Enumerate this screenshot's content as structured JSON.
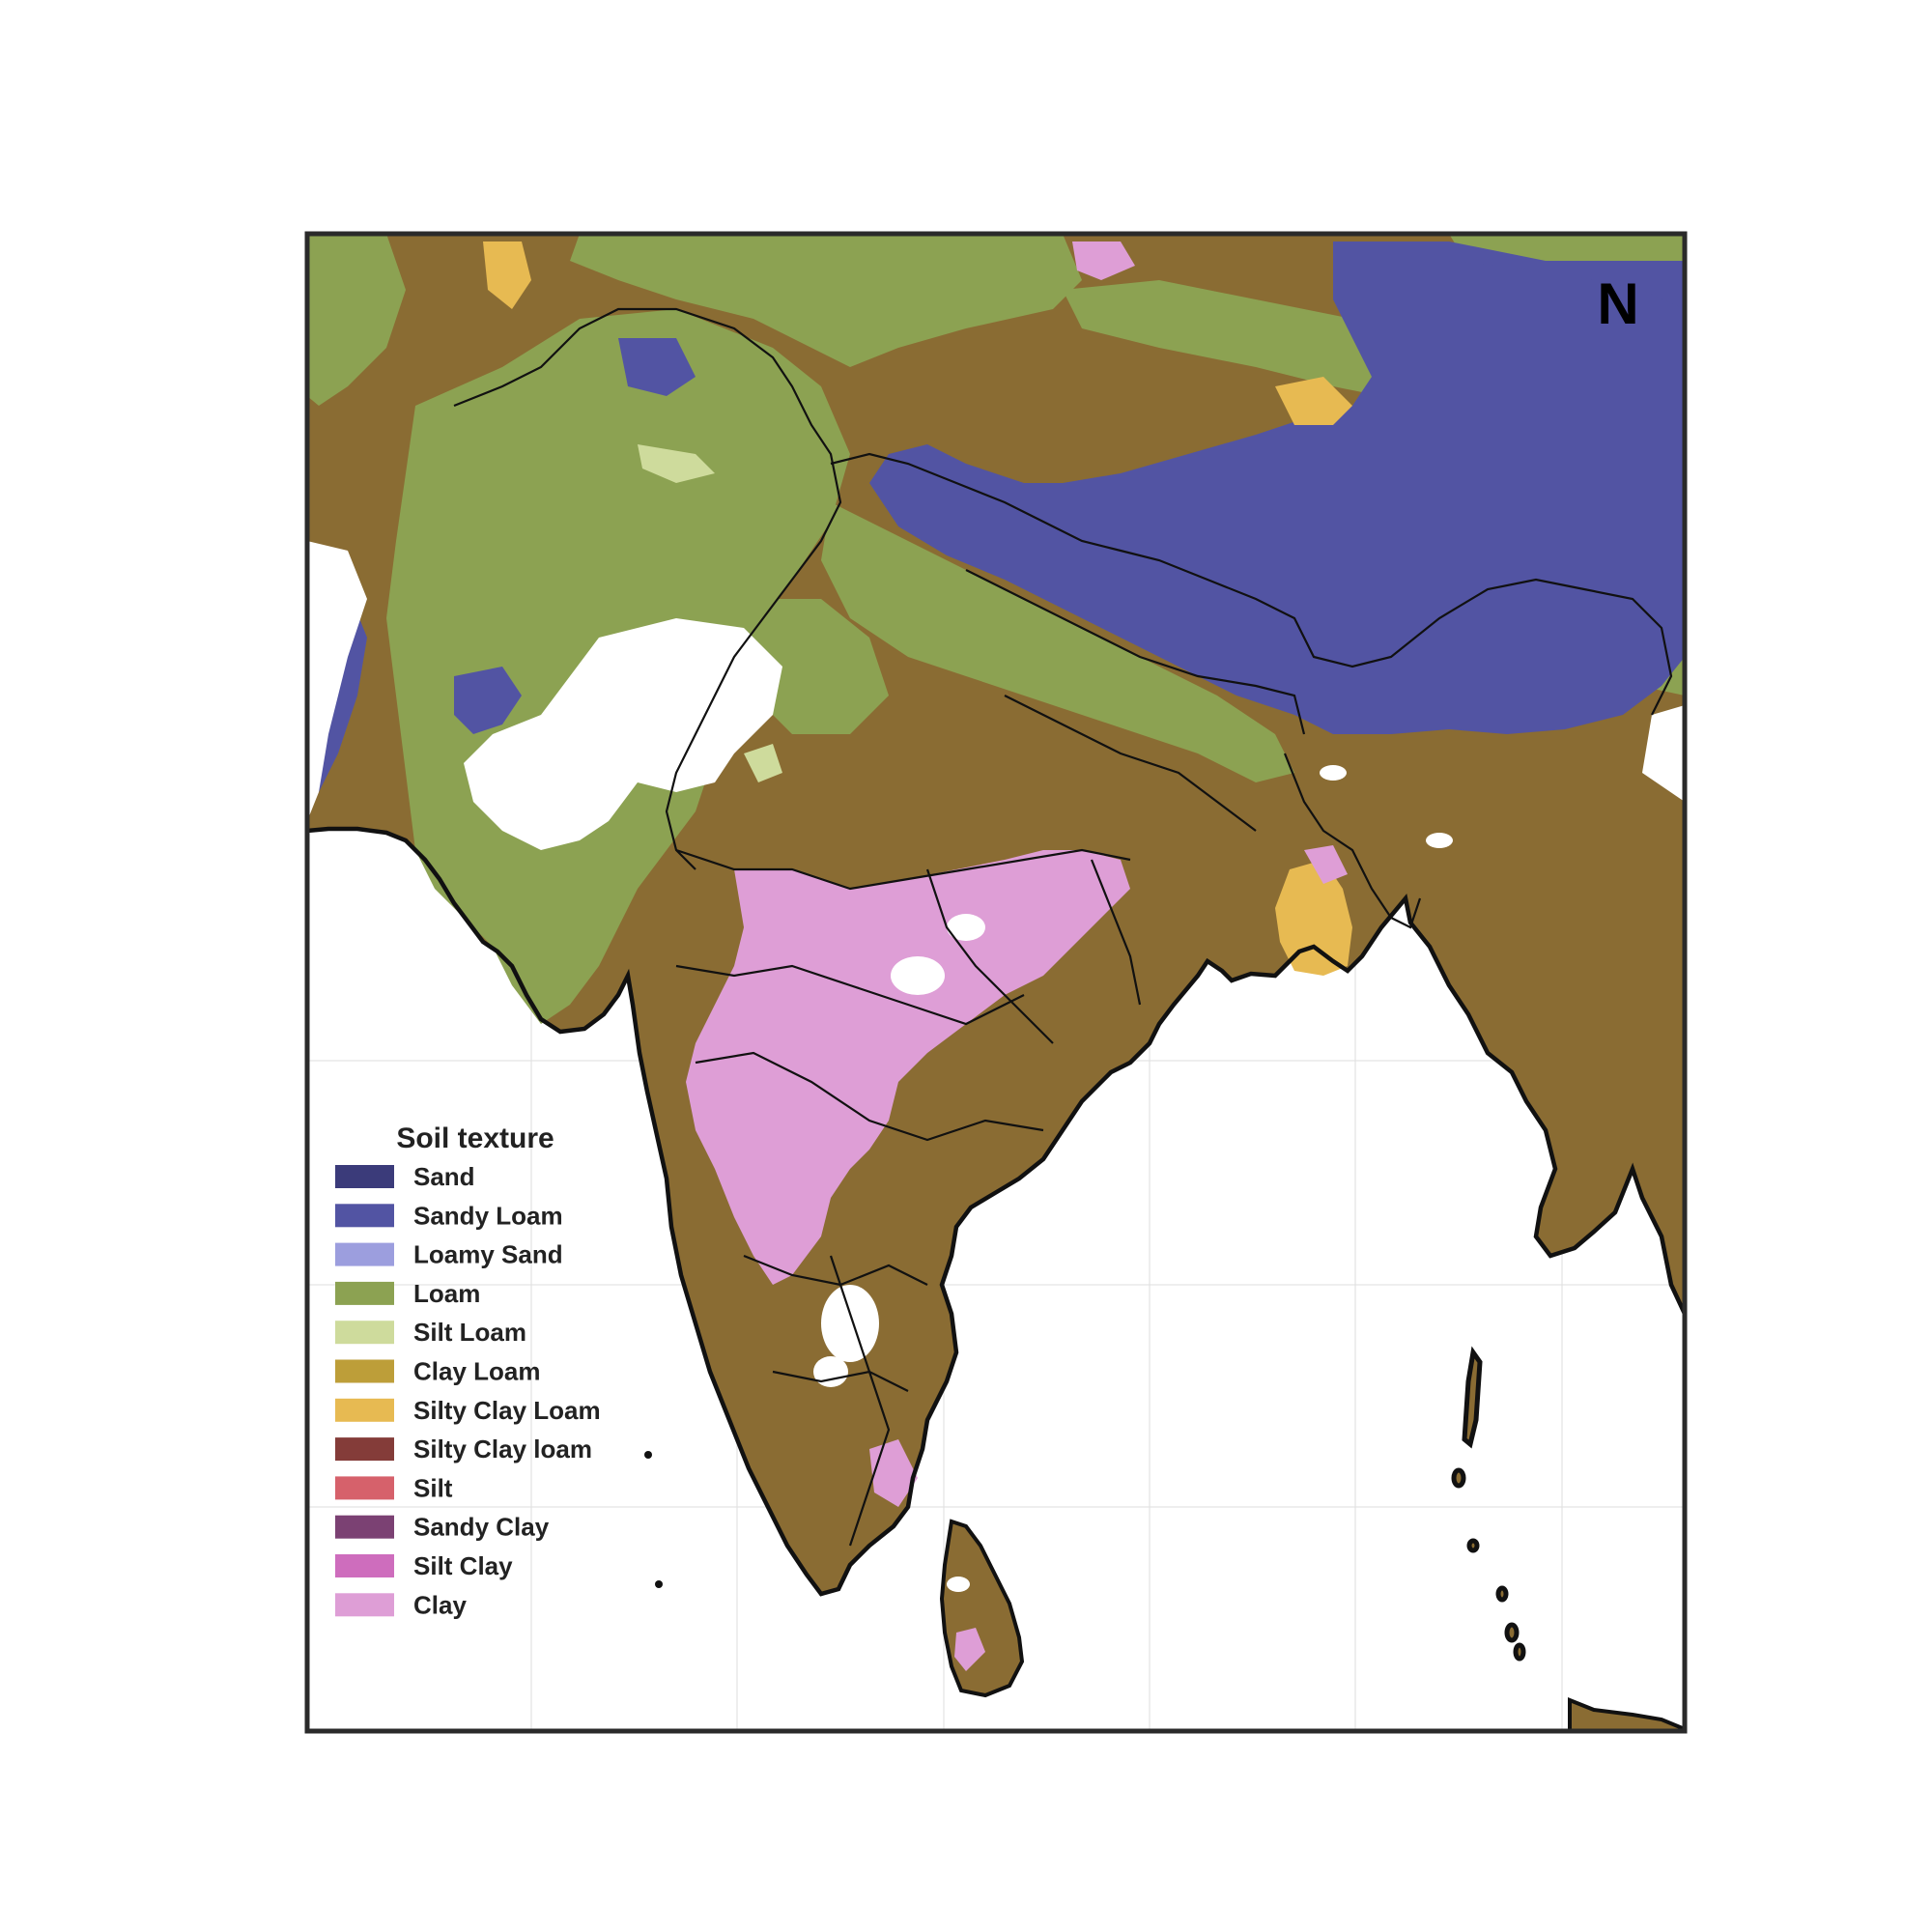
{
  "map": {
    "north_label": "N",
    "colors": {
      "ocean": "#ffffff",
      "gridline": "#e3e3e3",
      "border": "#111111",
      "frame": "#2a2a2a",
      "river": "#d9d9d9",
      "nodata": "#ffffff"
    }
  },
  "legend": {
    "title": "Soil texture",
    "items": [
      {
        "label": "Sand",
        "color": "#3b3b7a"
      },
      {
        "label": "Sandy Loam",
        "color": "#5254a3"
      },
      {
        "label": "Loamy Sand",
        "color": "#9c9ede"
      },
      {
        "label": "Loam",
        "color": "#8ca252"
      },
      {
        "label": "Silt Loam",
        "color": "#cedb9c"
      },
      {
        "label": "Clay Loam",
        "color": "#bd9e39"
      },
      {
        "label": "Silty Clay Loam",
        "color": "#e7ba52"
      },
      {
        "label": "Silty Clay loam",
        "color": "#843c39"
      },
      {
        "label": "Silt",
        "color": "#d6616b"
      },
      {
        "label": "Sandy Clay",
        "color": "#7b4173"
      },
      {
        "label": "Silt Clay",
        "color": "#ce6dbd"
      },
      {
        "label": "Clay",
        "color": "#de9ed6"
      }
    ]
  },
  "regions": {
    "dominant_color": "#8a6c33"
  }
}
